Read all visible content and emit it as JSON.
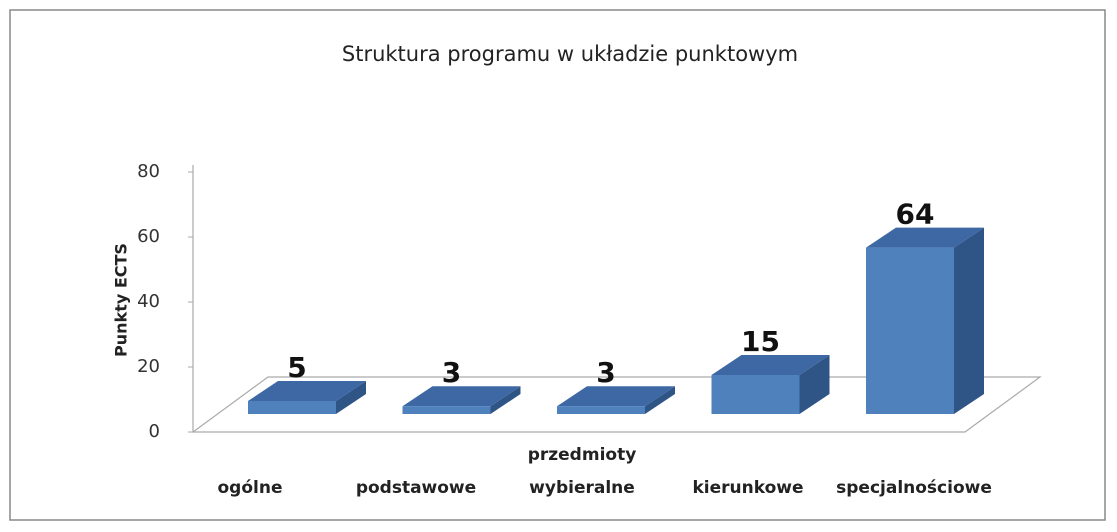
{
  "chart_data": {
    "type": "bar3d",
    "title": "Struktura programu w układzie punktowym",
    "y_label": "Punkty ECTS",
    "categories": [
      "ogólne",
      "podstawowe",
      "przedmioty wybieralne",
      "kierunkowe",
      "specjalnościowe"
    ],
    "values": [
      5,
      3,
      3,
      15,
      64
    ],
    "color": "#4f81bd",
    "ylim": [
      0,
      80
    ],
    "yticks": [
      0,
      20,
      40,
      60,
      80
    ],
    "grid": false,
    "data_labels": true
  }
}
